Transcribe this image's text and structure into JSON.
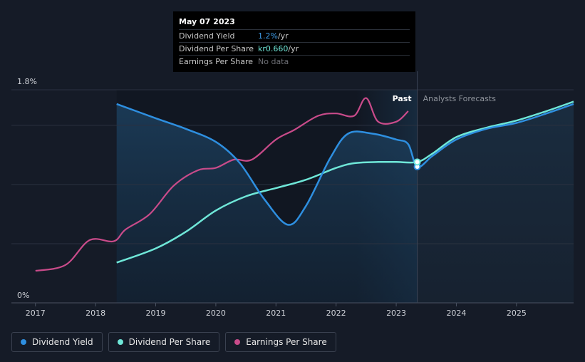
{
  "chart_data": {
    "type": "line",
    "y_axis": {
      "top_label": "1.8%",
      "bottom_label": "0%"
    },
    "x_ticks": [
      "2017",
      "2018",
      "2019",
      "2020",
      "2021",
      "2022",
      "2023",
      "2024",
      "2025"
    ],
    "region_labels": {
      "past": "Past",
      "forecast": "Analysts Forecasts"
    },
    "colors": {
      "dividend_yield": "#2e8fe0",
      "dividend_per_share": "#6fe7d8",
      "earnings_per_share": "#c94b8a",
      "grid": "#2b3240",
      "axis_text": "#cfd2d8"
    },
    "series": [
      {
        "name": "Dividend Yield",
        "key": "dividend_yield",
        "points": [
          [
            2018.35,
            1.68
          ],
          [
            2019.0,
            1.56
          ],
          [
            2019.5,
            1.47
          ],
          [
            2020.0,
            1.36
          ],
          [
            2020.4,
            1.18
          ],
          [
            2020.8,
            0.88
          ],
          [
            2021.2,
            0.66
          ],
          [
            2021.5,
            0.82
          ],
          [
            2021.9,
            1.22
          ],
          [
            2022.2,
            1.43
          ],
          [
            2022.6,
            1.43
          ],
          [
            2023.0,
            1.38
          ],
          [
            2023.2,
            1.34
          ],
          [
            2023.35,
            1.15
          ],
          [
            2023.6,
            1.24
          ],
          [
            2024.0,
            1.38
          ],
          [
            2024.5,
            1.47
          ],
          [
            2025.0,
            1.52
          ],
          [
            2025.5,
            1.6
          ],
          [
            2025.95,
            1.68
          ]
        ]
      },
      {
        "name": "Dividend Per Share",
        "key": "dividend_per_share",
        "points": [
          [
            2018.35,
            0.34
          ],
          [
            2019.0,
            0.46
          ],
          [
            2019.5,
            0.6
          ],
          [
            2020.0,
            0.78
          ],
          [
            2020.5,
            0.9
          ],
          [
            2021.0,
            0.97
          ],
          [
            2021.5,
            1.04
          ],
          [
            2022.0,
            1.14
          ],
          [
            2022.3,
            1.18
          ],
          [
            2022.7,
            1.19
          ],
          [
            2023.0,
            1.19
          ],
          [
            2023.35,
            1.19
          ],
          [
            2023.6,
            1.26
          ],
          [
            2024.0,
            1.4
          ],
          [
            2024.5,
            1.48
          ],
          [
            2025.0,
            1.54
          ],
          [
            2025.5,
            1.62
          ],
          [
            2025.95,
            1.7
          ]
        ]
      },
      {
        "name": "Earnings Per Share",
        "key": "earnings_per_share",
        "points": [
          [
            2017.0,
            0.27
          ],
          [
            2017.5,
            0.32
          ],
          [
            2017.9,
            0.53
          ],
          [
            2018.3,
            0.52
          ],
          [
            2018.5,
            0.62
          ],
          [
            2018.9,
            0.75
          ],
          [
            2019.3,
            0.99
          ],
          [
            2019.7,
            1.12
          ],
          [
            2020.0,
            1.14
          ],
          [
            2020.3,
            1.21
          ],
          [
            2020.6,
            1.21
          ],
          [
            2021.0,
            1.38
          ],
          [
            2021.3,
            1.46
          ],
          [
            2021.7,
            1.58
          ],
          [
            2022.0,
            1.6
          ],
          [
            2022.3,
            1.58
          ],
          [
            2022.5,
            1.73
          ],
          [
            2022.7,
            1.53
          ],
          [
            2023.0,
            1.53
          ],
          [
            2023.2,
            1.62
          ]
        ]
      }
    ],
    "past_boundary_x": 2023.35,
    "forecast_shade_start_x": 2022.33,
    "tooltip_x": 2023.35
  },
  "tooltip": {
    "date": "May 07 2023",
    "rows": [
      {
        "label": "Dividend Yield",
        "value": "1.2%",
        "unit": " /yr"
      },
      {
        "label": "Dividend Per Share",
        "value": "kr0.660",
        "unit": " /yr"
      },
      {
        "label": "Earnings Per Share",
        "value": "No data",
        "unit": ""
      }
    ]
  },
  "legend": [
    {
      "label": "Dividend Yield",
      "color": "#2e8fe0"
    },
    {
      "label": "Dividend Per Share",
      "color": "#6fe7d8"
    },
    {
      "label": "Earnings Per Share",
      "color": "#c94b8a"
    }
  ]
}
